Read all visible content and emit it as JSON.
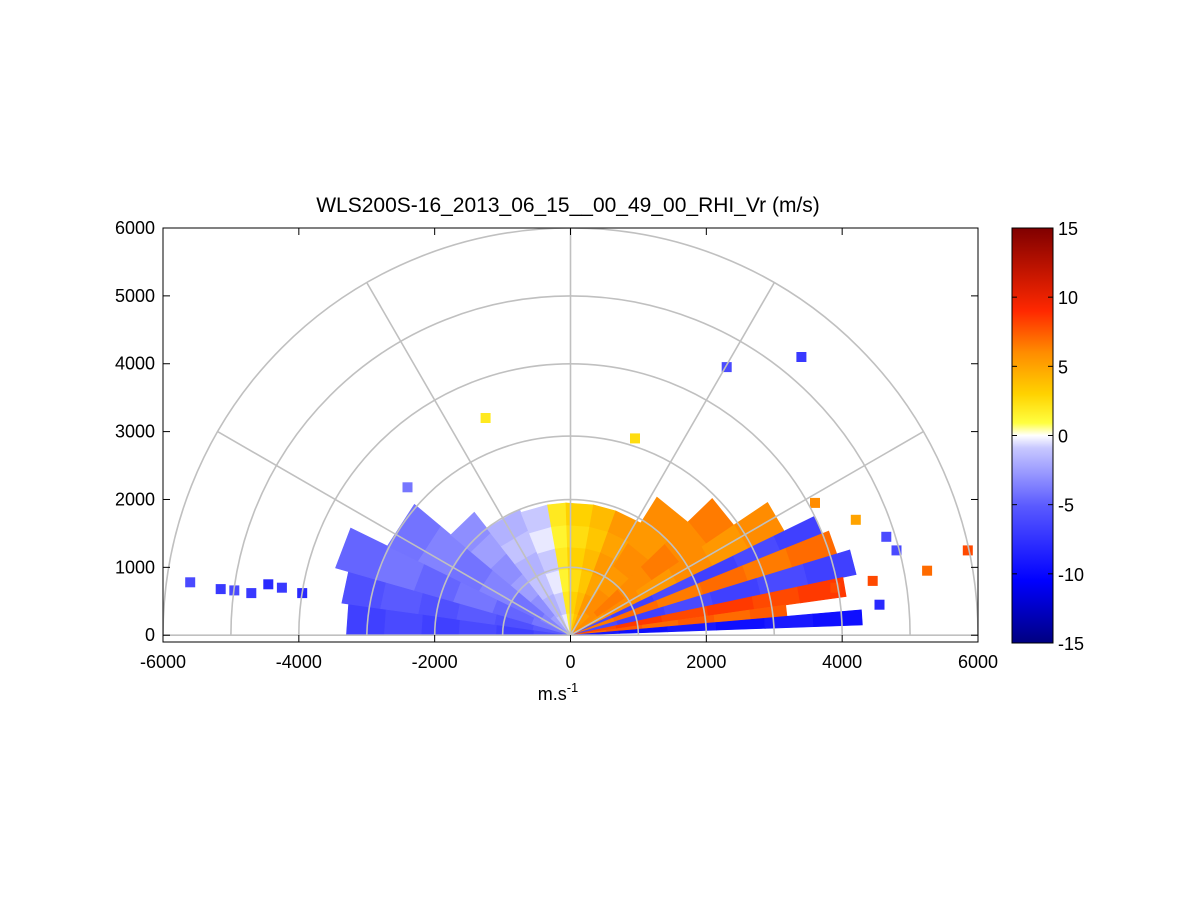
{
  "chart_data": {
    "type": "heatmap",
    "subtype": "polar-rhi-scan",
    "title": "WLS200S-16_2013_06_15__00_49_00_RHI_Vr (m/s)",
    "xlabel_base": "m.s",
    "xlabel_exp": "-1",
    "ylabel": "",
    "xlim": [
      -6000,
      6000
    ],
    "ylim": [
      -100,
      6000
    ],
    "xticks": [
      "-6000",
      "-4000",
      "-2000",
      "0",
      "2000",
      "4000",
      "6000"
    ],
    "yticks": [
      "0",
      "1000",
      "2000",
      "3000",
      "4000",
      "5000",
      "6000"
    ],
    "grid": true,
    "polar_grid": {
      "range_rings": [
        1000,
        2000,
        3000,
        4000,
        5000,
        6000
      ],
      "radial_angles_deg": [
        0,
        30,
        60,
        90,
        120,
        150,
        180
      ]
    },
    "colorbar": {
      "label": "",
      "ticks": [
        "15",
        "10",
        "5",
        "0",
        "-5",
        "-10",
        "-15"
      ],
      "range": [
        -15,
        15
      ],
      "placement": "right"
    },
    "wedges": [
      {
        "el_start": 172,
        "el_end": 180,
        "r_start": 0,
        "r_end": 3300,
        "vr": -6
      },
      {
        "el_start": 164,
        "el_end": 172,
        "r_start": 0,
        "r_end": 3400,
        "vr": -5
      },
      {
        "el_start": 154,
        "el_end": 164,
        "r_start": 0,
        "r_end": 3600,
        "vr": -4
      },
      {
        "el_start": 140,
        "el_end": 154,
        "r_start": 0,
        "r_end": 3000,
        "vr": -3.5
      },
      {
        "el_start": 128,
        "el_end": 140,
        "r_start": 0,
        "r_end": 2300,
        "vr": -2.5
      },
      {
        "el_start": 112,
        "el_end": 128,
        "r_start": 0,
        "r_end": 2000,
        "vr": -1.2
      },
      {
        "el_start": 100,
        "el_end": 112,
        "r_start": 0,
        "r_end": 1950,
        "vr": -0.4
      },
      {
        "el_start": 92,
        "el_end": 100,
        "r_start": 0,
        "r_end": 1950,
        "vr": 1.5
      },
      {
        "el_start": 80,
        "el_end": 92,
        "r_start": 0,
        "r_end": 1950,
        "vr": 2.5
      },
      {
        "el_start": 70,
        "el_end": 80,
        "r_start": 0,
        "r_end": 1950,
        "vr": 3.5
      },
      {
        "el_start": 58,
        "el_end": 70,
        "r_start": 0,
        "r_end": 1950,
        "vr": 5
      },
      {
        "el_start": 44,
        "el_end": 58,
        "r_start": 0,
        "r_end": 2400,
        "vr": 5.5
      },
      {
        "el_start": 34,
        "el_end": 44,
        "r_start": 0,
        "r_end": 2900,
        "vr": 6
      },
      {
        "el_start": 26,
        "el_end": 34,
        "r_start": 0,
        "r_end": 3500,
        "vr": 5.5
      },
      {
        "el_start": 22,
        "el_end": 26,
        "r_start": 0,
        "r_end": 4000,
        "vr": -6
      },
      {
        "el_start": 17,
        "el_end": 22,
        "r_start": 0,
        "r_end": 4100,
        "vr": 6.5
      },
      {
        "el_start": 12,
        "el_end": 17,
        "r_start": 0,
        "r_end": 4300,
        "vr": -6
      },
      {
        "el_start": 8,
        "el_end": 12,
        "r_start": 0,
        "r_end": 4100,
        "vr": 8
      },
      {
        "el_start": 5,
        "el_end": 8,
        "r_start": 0,
        "r_end": 3200,
        "vr": 7
      },
      {
        "el_start": 2,
        "el_end": 5,
        "r_start": 0,
        "r_end": 4300,
        "vr": -9
      }
    ],
    "points": [
      {
        "x": -5600,
        "y": 780,
        "vr": -6
      },
      {
        "x": -5150,
        "y": 680,
        "vr": -7
      },
      {
        "x": -4950,
        "y": 660,
        "vr": -6
      },
      {
        "x": -4700,
        "y": 620,
        "vr": -7
      },
      {
        "x": -4450,
        "y": 750,
        "vr": -8
      },
      {
        "x": -4250,
        "y": 700,
        "vr": -7
      },
      {
        "x": -3950,
        "y": 620,
        "vr": -8
      },
      {
        "x": -2400,
        "y": 2180,
        "vr": -4
      },
      {
        "x": -1250,
        "y": 3200,
        "vr": 2
      },
      {
        "x": 950,
        "y": 2900,
        "vr": 2.5
      },
      {
        "x": 2300,
        "y": 3950,
        "vr": -6
      },
      {
        "x": 3400,
        "y": 4100,
        "vr": -7
      },
      {
        "x": 3600,
        "y": 1950,
        "vr": 6
      },
      {
        "x": 4200,
        "y": 1700,
        "vr": 5
      },
      {
        "x": 4650,
        "y": 1450,
        "vr": -6
      },
      {
        "x": 4800,
        "y": 1250,
        "vr": -6
      },
      {
        "x": 5250,
        "y": 950,
        "vr": 7
      },
      {
        "x": 5850,
        "y": 1250,
        "vr": 8
      },
      {
        "x": 4450,
        "y": 800,
        "vr": 8
      },
      {
        "x": 3900,
        "y": 700,
        "vr": 8
      },
      {
        "x": 4550,
        "y": 450,
        "vr": -8
      }
    ]
  }
}
